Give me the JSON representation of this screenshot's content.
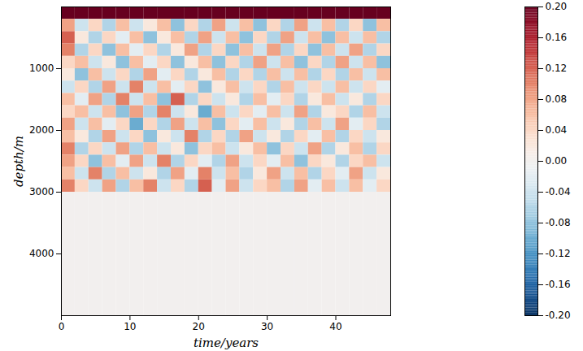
{
  "chart_data": {
    "type": "heatmap",
    "xlabel": "time/years",
    "ylabel": "depth/m",
    "xlim": [
      0,
      48
    ],
    "ylim": [
      0,
      5000
    ],
    "xticks": [
      0,
      10,
      20,
      30,
      40
    ],
    "yticks": [
      1000,
      2000,
      3000,
      4000
    ],
    "grid": false,
    "x_edges": [
      0,
      2,
      4,
      6,
      8,
      10,
      12,
      14,
      16,
      18,
      20,
      22,
      24,
      26,
      28,
      30,
      32,
      34,
      36,
      38,
      40,
      42,
      44,
      46,
      48
    ],
    "y_edges": [
      0,
      200,
      400,
      600,
      800,
      1000,
      1200,
      1400,
      1600,
      1800,
      2000,
      2200,
      2400,
      2600,
      2800,
      3000,
      5000
    ],
    "cells": [
      [
        0.2,
        0.2,
        0.2,
        0.2,
        0.2,
        0.2,
        0.2,
        0.2,
        0.2,
        0.2,
        0.2,
        0.2,
        0.2,
        0.2,
        0.2,
        0.2,
        0.2,
        0.2,
        0.2,
        0.2,
        0.2,
        0.2,
        0.2,
        0.2
      ],
      [
        0.08,
        -0.04,
        0.04,
        -0.06,
        0.06,
        -0.04,
        0.02,
        0.06,
        -0.08,
        0.04,
        -0.06,
        0.08,
        -0.04,
        0.06,
        -0.08,
        0.04,
        -0.06,
        0.08,
        -0.04,
        0.06,
        -0.06,
        0.04,
        -0.08,
        0.06
      ],
      [
        0.12,
        0.02,
        -0.06,
        0.04,
        -0.02,
        0.06,
        -0.08,
        0.02,
        0.06,
        -0.06,
        0.08,
        -0.04,
        0.06,
        -0.08,
        0.04,
        -0.06,
        0.08,
        -0.04,
        0.06,
        -0.08,
        0.06,
        -0.04,
        0.06,
        -0.06
      ],
      [
        0.1,
        -0.06,
        0.04,
        -0.08,
        0.06,
        -0.02,
        0.04,
        -0.06,
        0.02,
        0.08,
        -0.06,
        0.04,
        -0.08,
        0.06,
        -0.04,
        0.08,
        -0.06,
        0.04,
        -0.08,
        0.06,
        -0.04,
        0.08,
        -0.06,
        0.04
      ],
      [
        0.04,
        0.06,
        -0.04,
        0.02,
        -0.08,
        0.06,
        -0.02,
        0.04,
        -0.08,
        0.02,
        0.06,
        -0.08,
        0.04,
        -0.06,
        0.08,
        -0.04,
        0.06,
        -0.08,
        0.04,
        -0.06,
        0.08,
        -0.04,
        0.06,
        -0.08
      ],
      [
        0.02,
        -0.08,
        0.06,
        -0.04,
        0.04,
        -0.06,
        0.08,
        -0.02,
        0.04,
        -0.06,
        0.02,
        0.06,
        -0.06,
        0.04,
        -0.06,
        0.06,
        -0.04,
        0.06,
        -0.06,
        0.04,
        -0.06,
        0.06,
        -0.04,
        0.06
      ],
      [
        -0.04,
        0.04,
        -0.06,
        0.08,
        -0.04,
        0.1,
        -0.04,
        0.06,
        -0.02,
        0.04,
        -0.08,
        0.02,
        0.06,
        -0.04,
        0.04,
        -0.06,
        0.06,
        -0.04,
        0.04,
        -0.04,
        0.06,
        -0.04,
        0.04,
        -0.02
      ],
      [
        0.06,
        -0.02,
        0.08,
        -0.06,
        0.1,
        -0.04,
        0.06,
        -0.08,
        0.12,
        -0.06,
        0.04,
        -0.04,
        0.02,
        -0.06,
        0.06,
        -0.02,
        0.04,
        -0.06,
        0.02,
        0.06,
        -0.04,
        0.02,
        -0.06,
        0.04
      ],
      [
        0.04,
        0.06,
        -0.04,
        0.06,
        -0.08,
        0.08,
        -0.06,
        0.1,
        -0.04,
        0.02,
        -0.1,
        0.06,
        -0.04,
        0.04,
        -0.02,
        0.06,
        -0.04,
        0.08,
        -0.06,
        0.02,
        0.04,
        -0.06,
        0.06,
        -0.04
      ],
      [
        0.08,
        -0.04,
        0.06,
        -0.02,
        0.04,
        -0.1,
        0.04,
        -0.06,
        0.08,
        -0.04,
        0.06,
        -0.08,
        0.04,
        -0.02,
        0.06,
        -0.04,
        0.02,
        -0.06,
        0.06,
        -0.04,
        0.08,
        -0.02,
        0.04,
        -0.06
      ],
      [
        0.06,
        0.02,
        -0.06,
        0.08,
        -0.04,
        0.04,
        -0.08,
        0.02,
        -0.04,
        0.1,
        -0.06,
        0.04,
        -0.06,
        0.08,
        -0.04,
        0.02,
        -0.06,
        0.04,
        -0.02,
        0.06,
        -0.06,
        0.04,
        -0.04,
        0.02
      ],
      [
        0.1,
        -0.06,
        0.04,
        -0.04,
        0.08,
        -0.06,
        0.06,
        -0.04,
        0.02,
        -0.08,
        0.04,
        0.06,
        -0.04,
        0.02,
        0.06,
        -0.08,
        0.04,
        -0.04,
        0.08,
        -0.06,
        0.02,
        0.06,
        -0.06,
        0.04
      ],
      [
        0.08,
        0.04,
        -0.08,
        0.06,
        -0.02,
        0.08,
        -0.04,
        0.1,
        -0.06,
        0.04,
        -0.02,
        -0.06,
        0.08,
        -0.04,
        0.04,
        -0.02,
        0.06,
        -0.08,
        0.04,
        0.02,
        -0.06,
        0.04,
        0.06,
        -0.04
      ],
      [
        0.06,
        -0.04,
        0.1,
        -0.06,
        0.06,
        -0.04,
        0.02,
        -0.06,
        0.08,
        -0.02,
        0.1,
        -0.04,
        0.06,
        -0.06,
        0.02,
        0.08,
        -0.04,
        0.06,
        -0.06,
        0.04,
        -0.02,
        0.08,
        -0.04,
        0.02
      ],
      [
        0.1,
        0.04,
        -0.04,
        0.08,
        -0.06,
        0.06,
        0.1,
        -0.04,
        0.04,
        -0.06,
        0.12,
        -0.02,
        0.08,
        -0.04,
        0.04,
        0.06,
        -0.06,
        0.08,
        -0.02,
        0.06,
        -0.04,
        0.06,
        -0.02,
        0.04
      ],
      [
        0,
        0,
        0,
        0,
        0,
        0,
        0,
        0,
        0,
        0,
        0,
        0,
        0,
        0,
        0,
        0,
        0,
        0,
        0,
        0,
        0,
        0,
        0,
        0
      ]
    ],
    "colorbar": {
      "range": [
        -0.2,
        0.2
      ],
      "ticks": [
        {
          "value": 0.2,
          "label": "0.20"
        },
        {
          "value": 0.16,
          "label": "0.16"
        },
        {
          "value": 0.12,
          "label": "0.12"
        },
        {
          "value": 0.08,
          "label": "0.08"
        },
        {
          "value": 0.04,
          "label": "0.04"
        },
        {
          "value": 0,
          "label": "0.00"
        },
        {
          "value": -0.04,
          "label": "-0.04"
        },
        {
          "value": -0.08,
          "label": "-0.08"
        },
        {
          "value": -0.12,
          "label": "-0.12"
        },
        {
          "value": -0.16,
          "label": "-0.16"
        },
        {
          "value": -0.2,
          "label": "-0.20"
        }
      ]
    }
  }
}
